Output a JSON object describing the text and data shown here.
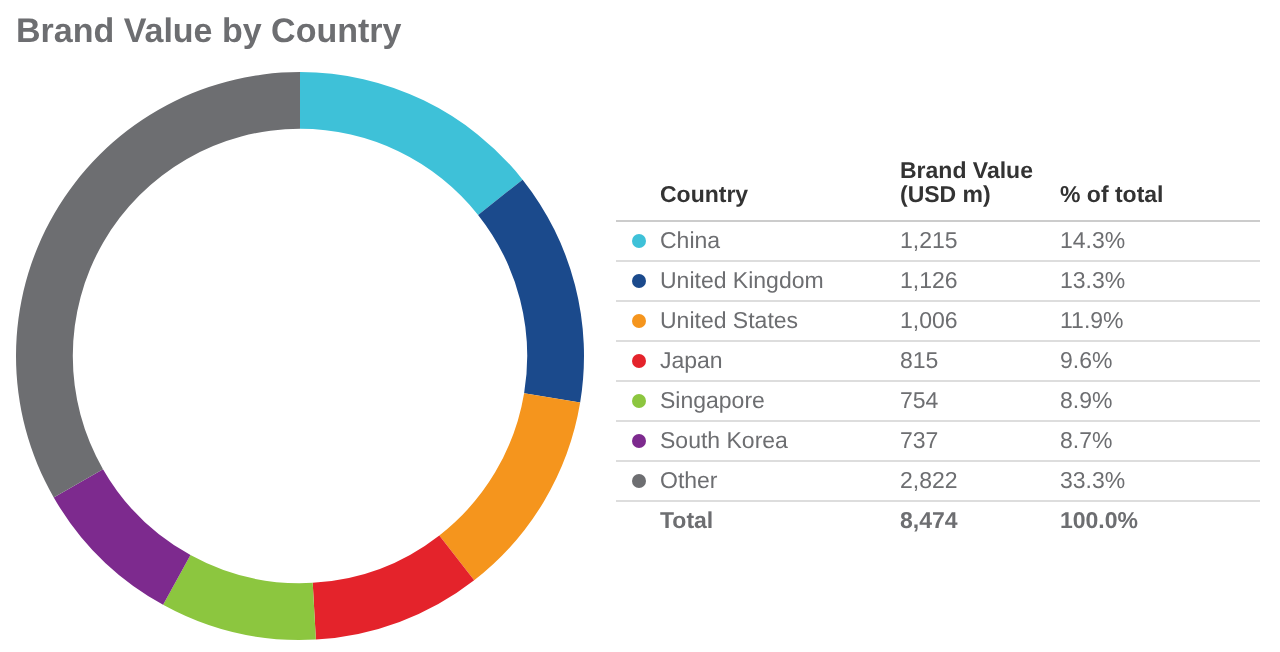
{
  "chart_data": {
    "type": "donut",
    "title": "Brand Value by Country",
    "categories": [
      "China",
      "United Kingdom",
      "United States",
      "Japan",
      "Singapore",
      "South Korea",
      "Other"
    ],
    "values": [
      1215,
      1126,
      1006,
      815,
      754,
      737,
      2822
    ],
    "colors": [
      "#3ec1d8",
      "#1b4a8c",
      "#f5951d",
      "#e4232b",
      "#8cc63f",
      "#7d2a8e",
      "#6d6e71"
    ],
    "value_labels": [
      "1,215",
      "1,126",
      "1,006",
      "815",
      "754",
      "737",
      "2,822"
    ],
    "legend": "right",
    "annotations": [
      "Country",
      "Brand Value (USD m)",
      "% of total",
      "14.3%",
      "13.3%",
      "11.9%",
      "9.6%",
      "8.9%",
      "8.7%",
      "33.3%",
      "Total",
      "8,474",
      "100.0%"
    ]
  }
}
